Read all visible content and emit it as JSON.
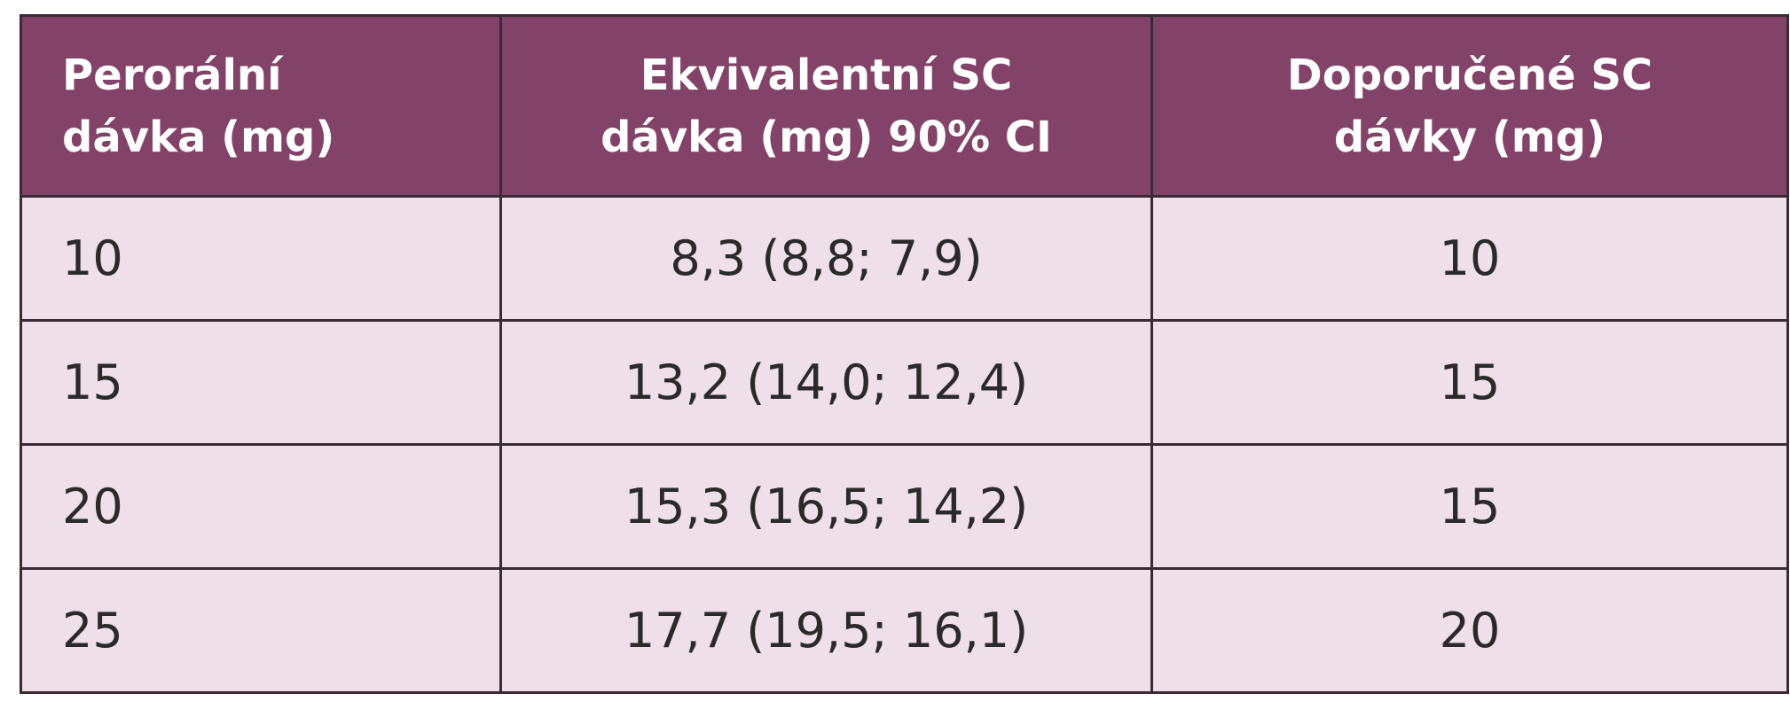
{
  "table": {
    "headers": [
      [
        "Perorální",
        "dávka (mg)"
      ],
      [
        "Ekvivalentní SC",
        "dávka (mg) 90% CI"
      ],
      [
        "Doporučené SC",
        "dávky (mg)"
      ]
    ],
    "rows": [
      [
        "10",
        "8,3 (8,8; 7,9)",
        "10"
      ],
      [
        "15",
        "13,2 (14,0; 12,4)",
        "15"
      ],
      [
        "20",
        "15,3 (16,5; 14,2)",
        "15"
      ],
      [
        "25",
        "17,7 (19,5; 16,1)",
        "20"
      ]
    ]
  },
  "colors": {
    "header_bg": "#834369",
    "header_text": "#ffffff",
    "row_bg": "#eedfe8",
    "border": "#3a2a35"
  }
}
